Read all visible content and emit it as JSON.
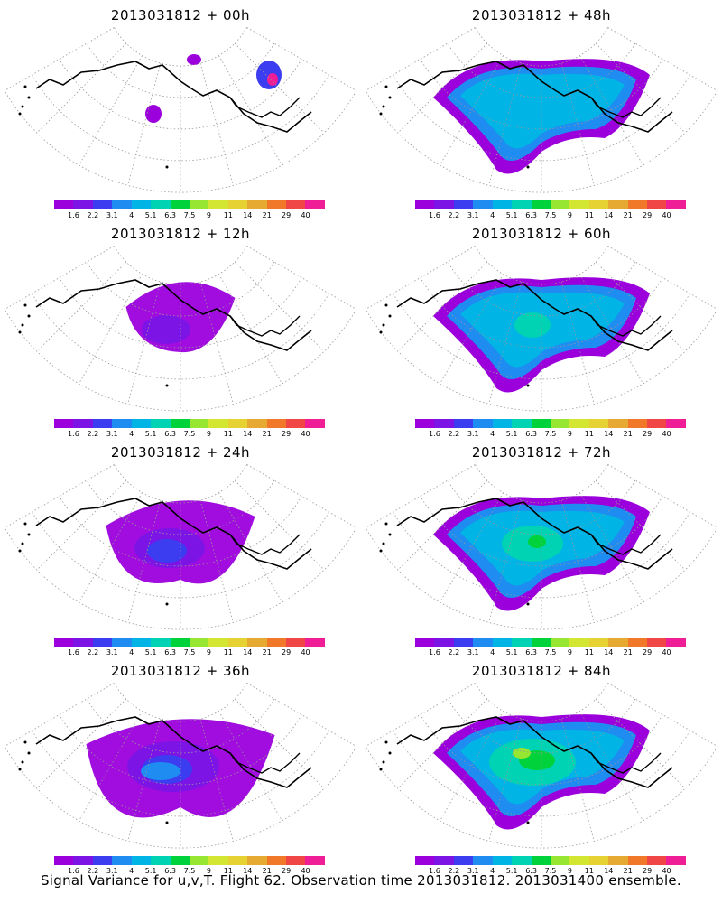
{
  "panels": [
    {
      "title": "2013031812 + 00h",
      "level": 0
    },
    {
      "title": "2013031812 + 48h",
      "level": 4
    },
    {
      "title": "2013031812 + 12h",
      "level": 1
    },
    {
      "title": "2013031812 + 60h",
      "level": 5
    },
    {
      "title": "2013031812 + 24h",
      "level": 2
    },
    {
      "title": "2013031812 + 72h",
      "level": 6
    },
    {
      "title": "2013031812 + 36h",
      "level": 3
    },
    {
      "title": "2013031812 + 84h",
      "level": 7
    }
  ],
  "legend": {
    "labels": [
      "1.6",
      "2.2",
      "3.1",
      "4",
      "5.1",
      "6.3",
      "7.5",
      "9",
      "11",
      "14",
      "21",
      "29",
      "40"
    ],
    "colors": [
      "#9b00dc",
      "#7d14e6",
      "#3c3cf0",
      "#1e8cf0",
      "#00b4e6",
      "#00d2b4",
      "#00d23c",
      "#96e632",
      "#d2e632",
      "#e6d232",
      "#e6aa32",
      "#f07828",
      "#f04646",
      "#f01e96"
    ]
  },
  "caption": "Signal Variance for u,v,T. Flight 62. Observation time 2013031812. 2013031400 ensemble."
}
